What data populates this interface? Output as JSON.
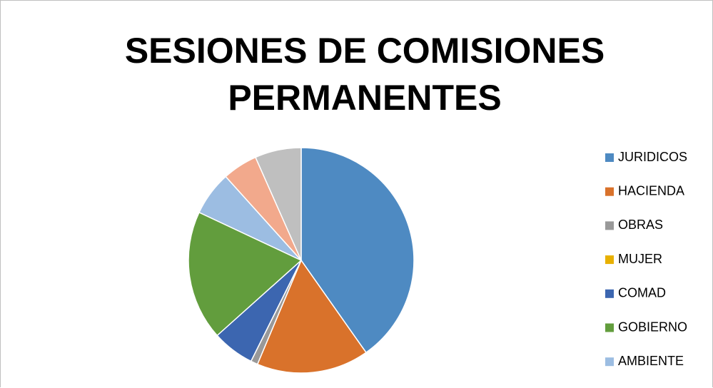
{
  "chart_data": {
    "type": "pie",
    "title": "SESIONES DE COMISIONES PERMANENTES",
    "categories": [
      "JURIDICOS",
      "HACIENDA",
      "OBRAS",
      "MUJER",
      "COMAD",
      "GOBIERNO",
      "AMBIENTE",
      null,
      null
    ],
    "values": [
      40,
      16,
      1,
      0,
      6,
      18.5,
      6.3,
      5,
      6.6
    ],
    "colors": [
      "#4e8ac2",
      "#d9722b",
      "#999999",
      "#e8b000",
      "#3c66b0",
      "#629d3d",
      "#9cbde2",
      "#f2a98c",
      "#bfbfbf"
    ],
    "legend": "right"
  }
}
